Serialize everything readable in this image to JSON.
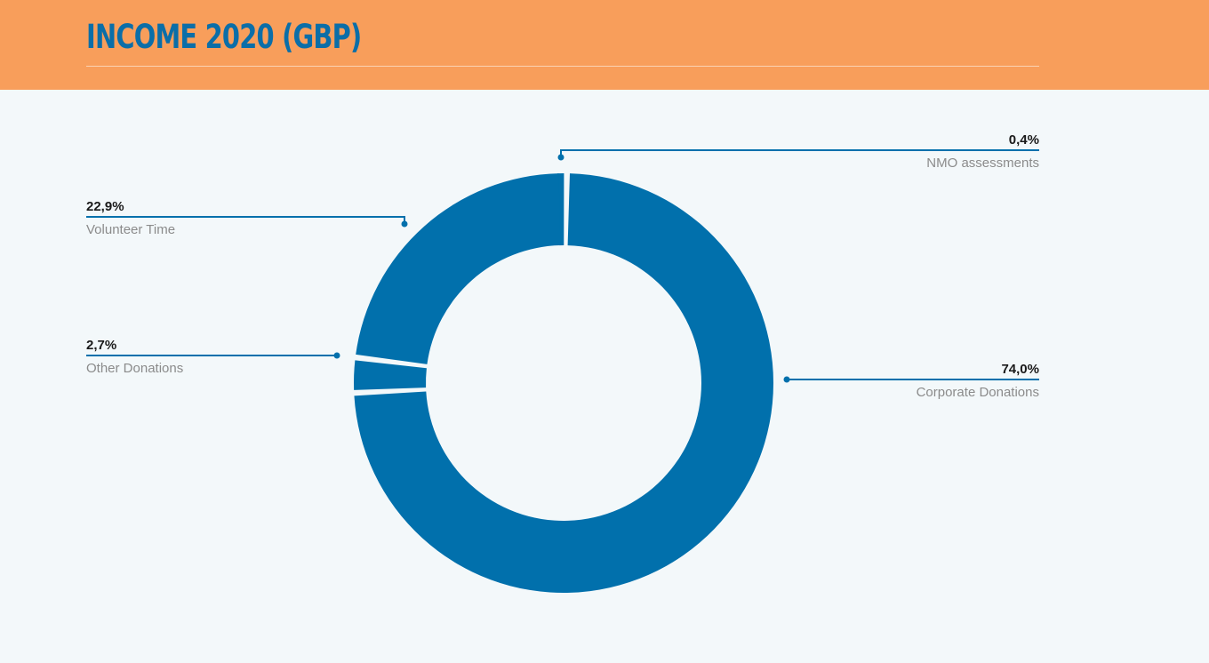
{
  "header": {
    "title": "INCOME 2020 (GBP)"
  },
  "colors": {
    "header_bg": "#f89e5b",
    "title": "#0b6ea8",
    "slice": "#0170ac",
    "page_bg": "#f3f8fa"
  },
  "chart_data": {
    "type": "pie",
    "title": "INCOME 2020 (GBP)",
    "donut": true,
    "unit": "%",
    "slices": [
      {
        "name": "NMO assessments",
        "label": "0,4%",
        "value": 0.4
      },
      {
        "name": "Corporate Donations",
        "label": "74,0%",
        "value": 74.0
      },
      {
        "name": "Other Donations",
        "label": "2,7%",
        "value": 2.7
      },
      {
        "name": "Volunteer Time",
        "label": "22,9%",
        "value": 22.9
      }
    ],
    "legend": "callouts"
  }
}
